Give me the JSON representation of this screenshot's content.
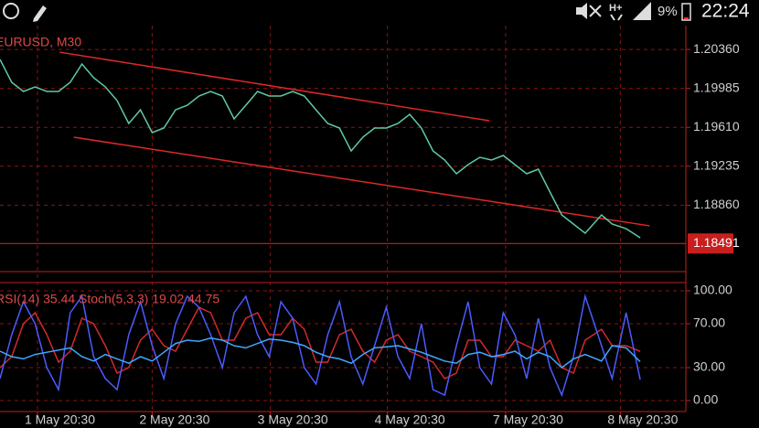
{
  "status_bar": {
    "battery": "9%",
    "time": "22:24"
  },
  "chart_data": [
    {
      "type": "line",
      "title": "EURUSD, M30",
      "x": [
        0,
        0.1,
        0.2,
        0.3,
        0.4,
        0.5,
        0.6,
        0.7,
        0.8,
        0.9,
        1.0,
        1.1,
        1.2,
        1.3,
        1.4,
        1.5,
        1.6,
        1.7,
        1.8,
        1.9,
        2.0,
        2.1,
        2.2,
        2.3,
        2.4,
        2.5,
        2.6,
        2.7,
        2.8,
        2.9,
        3.0,
        3.1,
        3.2,
        3.3,
        3.4,
        3.5,
        3.6,
        3.7,
        3.8,
        3.9,
        4.0,
        4.1,
        4.2,
        4.3,
        4.4,
        4.5,
        4.6,
        4.7,
        4.8,
        4.9,
        5.0,
        5.14,
        5.23,
        5.35,
        5.47
      ],
      "series": [
        {
          "color": "#5fc8a8",
          "values": [
            1.20264,
            1.20044,
            1.19956,
            1.2,
            1.19956,
            1.19956,
            1.20044,
            1.2022,
            1.20088,
            1.2,
            1.19868,
            1.19647,
            1.19779,
            1.19559,
            1.19603,
            1.19779,
            1.19823,
            1.19912,
            1.19956,
            1.19912,
            1.19691,
            1.19823,
            1.19956,
            1.19912,
            1.19912,
            1.19956,
            1.19912,
            1.19779,
            1.19647,
            1.19603,
            1.19383,
            1.19515,
            1.19603,
            1.19603,
            1.19647,
            1.19735,
            1.19603,
            1.19383,
            1.19295,
            1.19163,
            1.19251,
            1.19321,
            1.19295,
            1.19339,
            1.19251,
            1.19163,
            1.19207,
            1.18986,
            1.18766,
            1.18678,
            1.1859,
            1.18766,
            1.18678,
            1.18634,
            1.18546
          ]
        }
      ],
      "trendlines": [
        {
          "color": "#e02828",
          "x": [
            0.51,
            4.18
          ],
          "values": [
            1.20334,
            1.19674
          ]
        },
        {
          "color": "#e02828",
          "x": [
            0.63,
            5.55
          ],
          "values": [
            1.19515,
            1.18661
          ]
        }
      ],
      "current_price": 1.18491,
      "xlim": [
        0,
        5.86
      ],
      "ylim": [
        1.1822,
        1.2059
      ],
      "yticks": [
        {
          "value": 1.2036,
          "label": "1.20360"
        },
        1.19985,
        {
          "value": 1.1961,
          "label": "1.19610"
        },
        1.19235,
        {
          "value": 1.1886,
          "label": "1.18860"
        }
      ],
      "xticks": [
        {
          "value": 0.32,
          "label": "1 May 20:30"
        },
        {
          "value": 1.3,
          "label": "2 May 20:30"
        },
        {
          "value": 2.31,
          "label": "3 May 20:30"
        },
        {
          "value": 3.31,
          "label": "4 May 20:30"
        },
        {
          "value": 4.32,
          "label": "7 May 20:30"
        },
        {
          "value": 5.3,
          "label": "8 May 20:30"
        }
      ],
      "grid": true
    },
    {
      "type": "line",
      "title": "RSI(14) 35.44 Stoch(5,3,3) 19.02 44.75",
      "x": [
        0,
        0.1,
        0.2,
        0.3,
        0.4,
        0.5,
        0.6,
        0.7,
        0.8,
        0.9,
        1.0,
        1.1,
        1.2,
        1.3,
        1.4,
        1.5,
        1.6,
        1.7,
        1.8,
        1.9,
        2.0,
        2.1,
        2.2,
        2.3,
        2.4,
        2.5,
        2.6,
        2.7,
        2.8,
        2.9,
        3.0,
        3.1,
        3.2,
        3.3,
        3.4,
        3.5,
        3.6,
        3.7,
        3.8,
        3.9,
        4.0,
        4.1,
        4.2,
        4.3,
        4.4,
        4.5,
        4.6,
        4.7,
        4.8,
        4.9,
        5.0,
        5.14,
        5.23,
        5.35,
        5.47
      ],
      "series": [
        {
          "color": "#d42a2a",
          "values": [
            30,
            40,
            70,
            80,
            60,
            35,
            45,
            75,
            70,
            50,
            25,
            30,
            55,
            65,
            50,
            45,
            65,
            85,
            80,
            55,
            55,
            75,
            80,
            60,
            60,
            75,
            65,
            35,
            35,
            60,
            65,
            45,
            35,
            55,
            60,
            45,
            40,
            35,
            20,
            25,
            55,
            55,
            40,
            40,
            55,
            50,
            45,
            55,
            30,
            25,
            55,
            65,
            50,
            50,
            44.75
          ]
        },
        {
          "color": "#4a5cff",
          "values": [
            20,
            60,
            90,
            70,
            30,
            10,
            80,
            95,
            40,
            20,
            10,
            60,
            90,
            50,
            20,
            70,
            95,
            85,
            60,
            30,
            80,
            95,
            60,
            40,
            90,
            75,
            30,
            15,
            60,
            90,
            40,
            15,
            50,
            85,
            40,
            20,
            70,
            10,
            5,
            50,
            90,
            30,
            15,
            80,
            60,
            20,
            75,
            30,
            5,
            40,
            95,
            50,
            20,
            80,
            19.02
          ]
        },
        {
          "color": "#3fa8ff",
          "values": [
            45,
            40,
            38,
            42,
            44,
            46,
            48,
            40,
            36,
            42,
            38,
            34,
            40,
            36,
            44,
            52,
            55,
            54,
            57,
            55,
            50,
            48,
            52,
            56,
            55,
            53,
            50,
            44,
            40,
            38,
            34,
            42,
            48,
            49,
            50,
            47,
            44,
            40,
            36,
            34,
            42,
            44,
            40,
            42,
            45,
            38,
            44,
            40,
            30,
            38,
            42,
            36,
            50,
            48,
            35.44
          ]
        }
      ],
      "xlim": [
        0,
        5.86
      ],
      "ylim": [
        -10,
        107.5
      ],
      "yticks": [
        {
          "value": 100,
          "label": "100.00"
        },
        {
          "value": 70,
          "label": "70.00"
        },
        {
          "value": 30,
          "label": "30.00"
        },
        {
          "value": 0,
          "label": "0.00"
        }
      ],
      "grid": true
    }
  ]
}
